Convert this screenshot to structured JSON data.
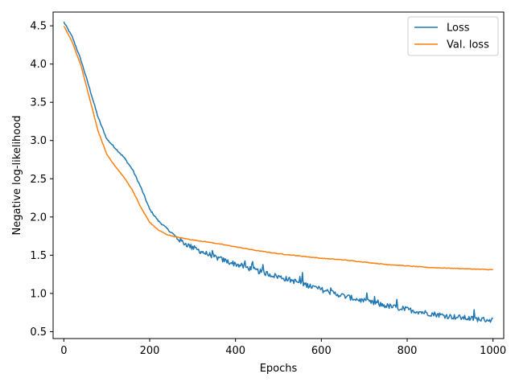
{
  "chart_data": {
    "type": "line",
    "title": "",
    "xlabel": "Epochs",
    "ylabel": "Negative log-likelihood",
    "xlim": [
      -25,
      1025
    ],
    "ylim": [
      0.41,
      4.68
    ],
    "xticks": [
      0,
      200,
      400,
      600,
      800,
      1000
    ],
    "yticks": [
      0.5,
      1.0,
      1.5,
      2.0,
      2.5,
      3.0,
      3.5,
      4.0,
      4.5
    ],
    "grid": false,
    "legend_position": "top-right",
    "series": [
      {
        "name": "Loss",
        "color": "#1f77b4",
        "noise": true,
        "points": [
          [
            0,
            4.55
          ],
          [
            20,
            4.35
          ],
          [
            40,
            4.05
          ],
          [
            60,
            3.68
          ],
          [
            80,
            3.3
          ],
          [
            100,
            3.02
          ],
          [
            120,
            2.9
          ],
          [
            140,
            2.78
          ],
          [
            160,
            2.62
          ],
          [
            180,
            2.38
          ],
          [
            200,
            2.1
          ],
          [
            220,
            1.95
          ],
          [
            240,
            1.85
          ],
          [
            260,
            1.74
          ],
          [
            280,
            1.66
          ],
          [
            300,
            1.6
          ],
          [
            340,
            1.5
          ],
          [
            380,
            1.42
          ],
          [
            420,
            1.35
          ],
          [
            460,
            1.28
          ],
          [
            500,
            1.22
          ],
          [
            550,
            1.14
          ],
          [
            600,
            1.05
          ],
          [
            650,
            0.97
          ],
          [
            700,
            0.9
          ],
          [
            750,
            0.84
          ],
          [
            800,
            0.79
          ],
          [
            850,
            0.74
          ],
          [
            900,
            0.7
          ],
          [
            950,
            0.67
          ],
          [
            1000,
            0.65
          ]
        ]
      },
      {
        "name": "Val. loss",
        "color": "#ff7f0e",
        "noise": false,
        "points": [
          [
            0,
            4.5
          ],
          [
            20,
            4.28
          ],
          [
            40,
            3.98
          ],
          [
            60,
            3.55
          ],
          [
            80,
            3.12
          ],
          [
            100,
            2.82
          ],
          [
            120,
            2.66
          ],
          [
            140,
            2.52
          ],
          [
            160,
            2.35
          ],
          [
            180,
            2.12
          ],
          [
            200,
            1.93
          ],
          [
            220,
            1.83
          ],
          [
            240,
            1.77
          ],
          [
            260,
            1.74
          ],
          [
            280,
            1.72
          ],
          [
            300,
            1.7
          ],
          [
            350,
            1.66
          ],
          [
            400,
            1.61
          ],
          [
            450,
            1.56
          ],
          [
            500,
            1.52
          ],
          [
            550,
            1.49
          ],
          [
            600,
            1.46
          ],
          [
            650,
            1.44
          ],
          [
            700,
            1.41
          ],
          [
            750,
            1.38
          ],
          [
            800,
            1.36
          ],
          [
            850,
            1.34
          ],
          [
            900,
            1.33
          ],
          [
            950,
            1.32
          ],
          [
            1000,
            1.31
          ]
        ]
      }
    ]
  }
}
